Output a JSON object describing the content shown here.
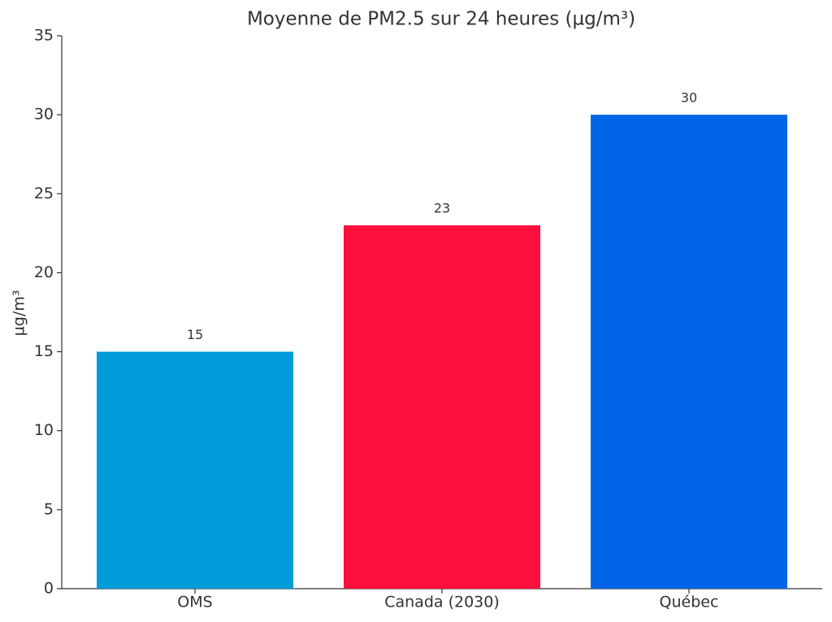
{
  "chart_data": {
    "type": "bar",
    "title": "Moyenne de PM2.5 sur 24 heures (µg/m³)",
    "y_label": "µg/m³",
    "categories": [
      "OMS",
      "Canada (2030)",
      "Québec"
    ],
    "values": [
      15,
      23,
      30
    ],
    "colors": [
      "#009cda",
      "#ff0f3c",
      "#0064e6"
    ],
    "ylim": [
      0,
      35
    ],
    "yticks": [
      0,
      5,
      10,
      15,
      20,
      25,
      30,
      35
    ],
    "grid": false
  }
}
